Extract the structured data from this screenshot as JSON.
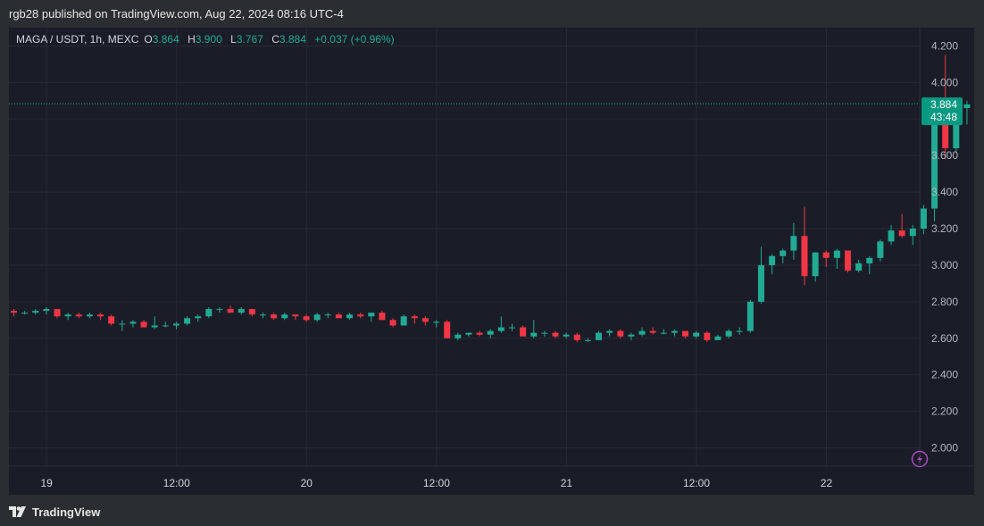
{
  "header": {
    "text": "rgb28 published on TradingView.com, Aug 22, 2024 08:16 UTC-4"
  },
  "legend": {
    "symbol": "MAGA / USDT, 1h, MEXC",
    "open_label": "O",
    "open": "3.864",
    "high_label": "H",
    "high": "3.900",
    "low_label": "L",
    "low": "3.767",
    "close_label": "C",
    "close": "3.884",
    "change": "+0.037 (+0.96%)"
  },
  "price_tag": {
    "price": "3.884",
    "countdown": "43:48"
  },
  "footer": {
    "brand": "TradingView"
  },
  "colors": {
    "up": "#22ab94",
    "down": "#f23645",
    "background": "#1a1d27",
    "grid": "#262a35",
    "accent": "#ab47bc"
  },
  "chart_data": {
    "type": "candlestick",
    "interval": "1h",
    "ylim": [
      1.9,
      4.3
    ],
    "yticks": [
      "2.000",
      "2.200",
      "2.400",
      "2.600",
      "2.800",
      "3.000",
      "3.200",
      "3.400",
      "3.600",
      "3.800",
      "4.000",
      "4.200"
    ],
    "xticks": [
      "19",
      "12:00",
      "20",
      "12:00",
      "21",
      "12:00",
      "22"
    ],
    "last_price": 3.884,
    "candles": [
      [
        2.75,
        2.76,
        2.72,
        2.74
      ],
      [
        2.74,
        2.75,
        2.73,
        2.74
      ],
      [
        2.74,
        2.76,
        2.73,
        2.75
      ],
      [
        2.75,
        2.77,
        2.73,
        2.76
      ],
      [
        2.76,
        2.76,
        2.71,
        2.72
      ],
      [
        2.72,
        2.74,
        2.7,
        2.73
      ],
      [
        2.73,
        2.74,
        2.71,
        2.72
      ],
      [
        2.72,
        2.74,
        2.71,
        2.73
      ],
      [
        2.73,
        2.74,
        2.7,
        2.72
      ],
      [
        2.72,
        2.73,
        2.67,
        2.68
      ],
      [
        2.68,
        2.7,
        2.64,
        2.68
      ],
      [
        2.68,
        2.7,
        2.66,
        2.69
      ],
      [
        2.69,
        2.7,
        2.66,
        2.66
      ],
      [
        2.66,
        2.72,
        2.65,
        2.67
      ],
      [
        2.67,
        2.69,
        2.66,
        2.67
      ],
      [
        2.67,
        2.69,
        2.65,
        2.68
      ],
      [
        2.68,
        2.72,
        2.67,
        2.71
      ],
      [
        2.71,
        2.73,
        2.69,
        2.72
      ],
      [
        2.72,
        2.77,
        2.71,
        2.76
      ],
      [
        2.76,
        2.77,
        2.74,
        2.76
      ],
      [
        2.76,
        2.78,
        2.74,
        2.74
      ],
      [
        2.74,
        2.77,
        2.73,
        2.76
      ],
      [
        2.76,
        2.76,
        2.72,
        2.73
      ],
      [
        2.73,
        2.74,
        2.71,
        2.73
      ],
      [
        2.73,
        2.74,
        2.7,
        2.71
      ],
      [
        2.71,
        2.74,
        2.7,
        2.73
      ],
      [
        2.73,
        2.73,
        2.7,
        2.72
      ],
      [
        2.72,
        2.73,
        2.69,
        2.7
      ],
      [
        2.7,
        2.74,
        2.69,
        2.73
      ],
      [
        2.73,
        2.74,
        2.71,
        2.73
      ],
      [
        2.73,
        2.74,
        2.71,
        2.71
      ],
      [
        2.71,
        2.74,
        2.7,
        2.73
      ],
      [
        2.73,
        2.74,
        2.71,
        2.72
      ],
      [
        2.72,
        2.74,
        2.69,
        2.74
      ],
      [
        2.74,
        2.75,
        2.7,
        2.7
      ],
      [
        2.7,
        2.71,
        2.66,
        2.67
      ],
      [
        2.67,
        2.73,
        2.67,
        2.72
      ],
      [
        2.72,
        2.73,
        2.68,
        2.71
      ],
      [
        2.71,
        2.72,
        2.67,
        2.69
      ],
      [
        2.69,
        2.7,
        2.66,
        2.69
      ],
      [
        2.69,
        2.7,
        2.6,
        2.6
      ],
      [
        2.6,
        2.63,
        2.59,
        2.62
      ],
      [
        2.62,
        2.63,
        2.61,
        2.63
      ],
      [
        2.63,
        2.64,
        2.61,
        2.62
      ],
      [
        2.62,
        2.65,
        2.6,
        2.64
      ],
      [
        2.64,
        2.72,
        2.63,
        2.66
      ],
      [
        2.66,
        2.68,
        2.64,
        2.66
      ],
      [
        2.66,
        2.67,
        2.61,
        2.61
      ],
      [
        2.61,
        2.7,
        2.6,
        2.63
      ],
      [
        2.63,
        2.64,
        2.61,
        2.63
      ],
      [
        2.63,
        2.64,
        2.6,
        2.61
      ],
      [
        2.61,
        2.63,
        2.6,
        2.62
      ],
      [
        2.62,
        2.63,
        2.58,
        2.59
      ],
      [
        2.59,
        2.6,
        2.58,
        2.59
      ],
      [
        2.59,
        2.64,
        2.59,
        2.63
      ],
      [
        2.63,
        2.65,
        2.61,
        2.64
      ],
      [
        2.64,
        2.65,
        2.6,
        2.61
      ],
      [
        2.61,
        2.63,
        2.59,
        2.62
      ],
      [
        2.62,
        2.66,
        2.61,
        2.64
      ],
      [
        2.64,
        2.66,
        2.62,
        2.63
      ],
      [
        2.63,
        2.65,
        2.62,
        2.63
      ],
      [
        2.63,
        2.65,
        2.61,
        2.64
      ],
      [
        2.64,
        2.64,
        2.6,
        2.61
      ],
      [
        2.61,
        2.64,
        2.6,
        2.63
      ],
      [
        2.63,
        2.64,
        2.58,
        2.59
      ],
      [
        2.59,
        2.62,
        2.59,
        2.61
      ],
      [
        2.61,
        2.65,
        2.6,
        2.64
      ],
      [
        2.64,
        2.66,
        2.62,
        2.64
      ],
      [
        2.64,
        2.81,
        2.63,
        2.8
      ],
      [
        2.8,
        3.1,
        2.79,
        3.0
      ],
      [
        3.0,
        3.06,
        2.95,
        3.05
      ],
      [
        3.05,
        3.09,
        3.01,
        3.08
      ],
      [
        3.08,
        3.23,
        3.03,
        3.16
      ],
      [
        3.16,
        3.32,
        2.89,
        2.94
      ],
      [
        2.94,
        3.07,
        2.91,
        3.07
      ],
      [
        3.07,
        3.08,
        2.99,
        3.04
      ],
      [
        3.04,
        3.09,
        2.98,
        3.08
      ],
      [
        3.08,
        3.07,
        2.96,
        2.97
      ],
      [
        2.97,
        3.03,
        2.96,
        3.01
      ],
      [
        3.01,
        3.05,
        2.95,
        3.04
      ],
      [
        3.04,
        3.14,
        3.02,
        3.13
      ],
      [
        3.13,
        3.22,
        3.11,
        3.19
      ],
      [
        3.19,
        3.28,
        3.15,
        3.16
      ],
      [
        3.16,
        3.22,
        3.11,
        3.2
      ],
      [
        3.2,
        3.33,
        3.17,
        3.31
      ],
      [
        3.31,
        3.84,
        3.24,
        3.84
      ],
      [
        3.84,
        4.15,
        3.58,
        3.64
      ],
      [
        3.64,
        3.89,
        3.62,
        3.85
      ],
      [
        3.86,
        3.9,
        3.77,
        3.88
      ]
    ]
  }
}
